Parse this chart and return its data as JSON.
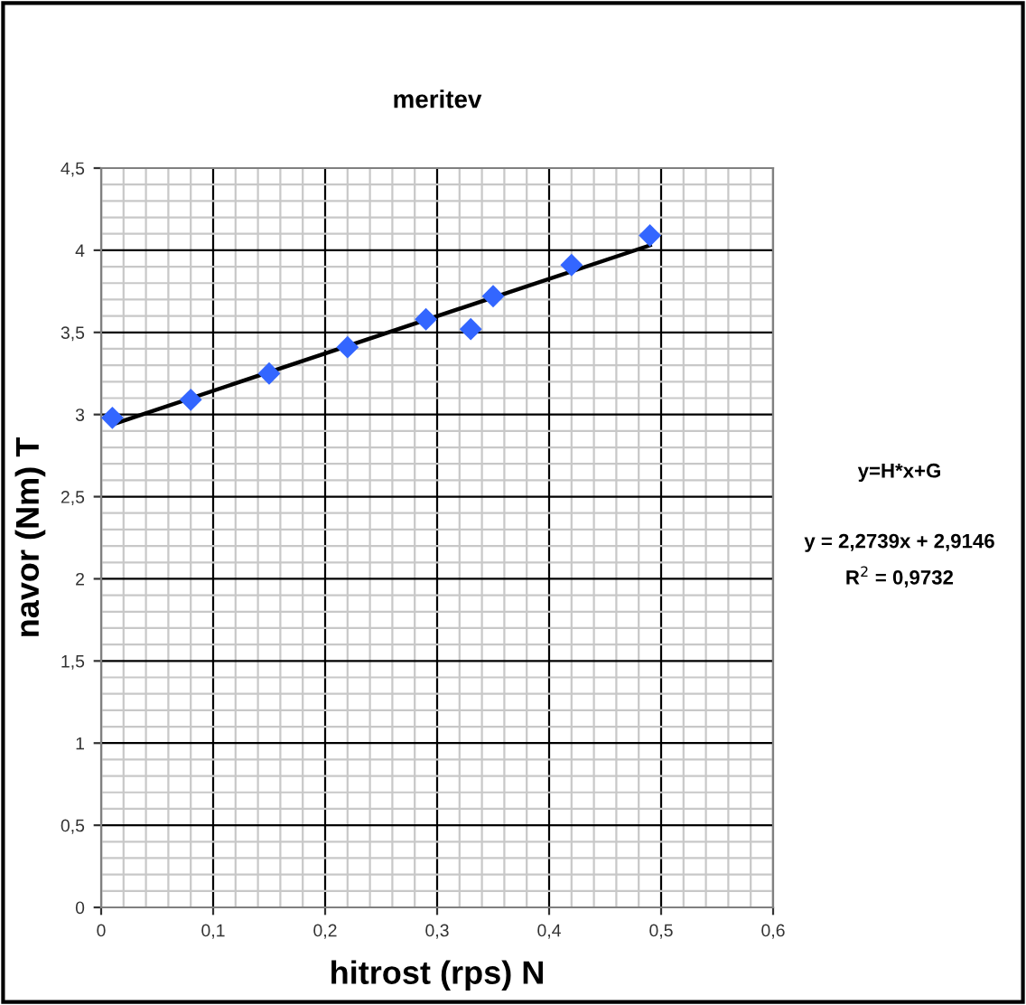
{
  "chart_data": {
    "type": "scatter",
    "title": "meritev",
    "xlabel": "hitrost (rps) N",
    "ylabel": "navor (Nm) T",
    "series": [
      {
        "color": "#3366ff",
        "marker": "diamond",
        "x": [
          0.01,
          0.08,
          0.15,
          0.22,
          0.29,
          0.33,
          0.35,
          0.42,
          0.49
        ],
        "values": [
          2.98,
          3.09,
          3.25,
          3.41,
          3.58,
          3.52,
          3.72,
          3.91,
          4.09
        ]
      },
      {
        "type": "line",
        "color": "#000000",
        "line_style": "solid",
        "x": [
          0.01,
          0.49
        ],
        "values": [
          2.94,
          4.03
        ]
      }
    ],
    "xlim": [
      0,
      0.6
    ],
    "ylim": [
      0,
      4.5
    ],
    "xticks": [
      0,
      {
        "value": 0.1,
        "label": "0,1"
      },
      {
        "value": 0.2,
        "label": "0,2"
      },
      {
        "value": 0.3,
        "label": "0,3"
      },
      {
        "value": 0.4,
        "label": "0,4"
      },
      {
        "value": 0.5,
        "label": "0,5"
      },
      {
        "value": 0.6,
        "label": "0,6"
      }
    ],
    "yticks": [
      0,
      {
        "value": 0.5,
        "label": "0,5"
      },
      1,
      {
        "value": 1.5,
        "label": "1,5"
      },
      2,
      {
        "value": 2.5,
        "label": "2,5"
      },
      3,
      {
        "value": 3.5,
        "label": "3,5"
      },
      4,
      {
        "value": 4.5,
        "label": "4,5"
      }
    ],
    "grid": true,
    "legend": false,
    "annotations": [
      "y=H*x+G",
      "y = 2,2739x + 2,9146",
      "R$^{2}$ = 0,9732"
    ]
  }
}
